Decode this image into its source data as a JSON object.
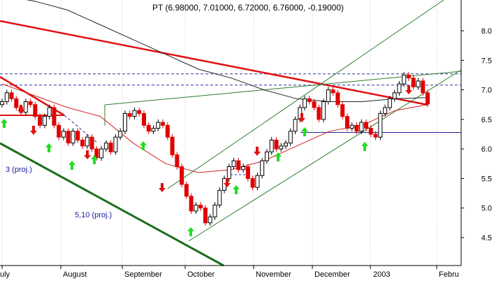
{
  "chart_data": {
    "type": "candlestick",
    "title": "PT (6.98000, 7.01000, 6.72000, 6.76000, -0.19000)",
    "ylim": [
      4.2,
      8.6
    ],
    "y_ticks": [
      "4.5",
      "5.0",
      "5.5",
      "6.0",
      "6.5",
      "7.0",
      "7.5",
      "8.0"
    ],
    "y_tick_values": [
      4.5,
      5.0,
      5.5,
      6.0,
      6.5,
      7.0,
      7.5,
      8.0
    ],
    "x_ticks": [
      "uly",
      "August",
      "September",
      "October",
      "November",
      "December",
      "2003",
      "Febru"
    ],
    "grid": true,
    "annotations": [
      "3 (proj.)",
      "5,10 (proj.)"
    ],
    "dashed_levels": [
      7.27,
      7.08
    ],
    "horizontal_support": 6.28,
    "colors": {
      "up_candle": "#000000",
      "down_candle": "#e00000",
      "long_term_ma": "#222222",
      "short_term_ma": "#d02020",
      "downtrend": "#e01010",
      "channel": "#2e7d2e",
      "support_level": "#2020a0",
      "arrow_up": "#22dd22",
      "arrow_down": "#e01010"
    },
    "series": [
      {
        "type": "candlestick",
        "closes": [
          6.8,
          6.95,
          6.85,
          6.7,
          6.62,
          6.8,
          6.75,
          6.55,
          6.4,
          6.55,
          6.7,
          6.4,
          6.2,
          6.3,
          6.1,
          6.3,
          6.15,
          6.05,
          6.2,
          6.0,
          5.85,
          6.0,
          6.1,
          5.95,
          6.2,
          6.3,
          6.6,
          6.55,
          6.65,
          6.6,
          6.4,
          6.3,
          6.35,
          6.45,
          6.4,
          6.2,
          5.9,
          5.7,
          5.4,
          5.2,
          4.95,
          5.05,
          5.0,
          4.75,
          4.85,
          5.05,
          5.3,
          5.5,
          5.7,
          5.8,
          5.65,
          5.7,
          5.5,
          5.35,
          5.55,
          5.8,
          5.95,
          6.15,
          6.0,
          6.05,
          6.1,
          6.3,
          6.5,
          6.7,
          6.85,
          6.8,
          6.7,
          6.5,
          6.8,
          7.0,
          6.95,
          6.75,
          6.55,
          6.35,
          6.4,
          6.3,
          6.45,
          6.35,
          6.25,
          6.2,
          6.6,
          6.7,
          6.85,
          6.95,
          7.1,
          7.25,
          7.2,
          7.05,
          7.15,
          6.95,
          6.76
        ]
      },
      {
        "name": "",
        "type": "line",
        "values": [
          8.6,
          8.5,
          8.35,
          8.1,
          7.85,
          7.6,
          7.35,
          7.2,
          7.0,
          6.85,
          6.8,
          6.8,
          6.85,
          6.87
        ]
      },
      {
        "name": "",
        "type": "line",
        "values": [
          7.1,
          6.9,
          6.7,
          6.55,
          6.1,
          5.75,
          5.6,
          5.65,
          5.8,
          6.05,
          6.3,
          6.4,
          6.65,
          6.75
        ]
      }
    ]
  }
}
